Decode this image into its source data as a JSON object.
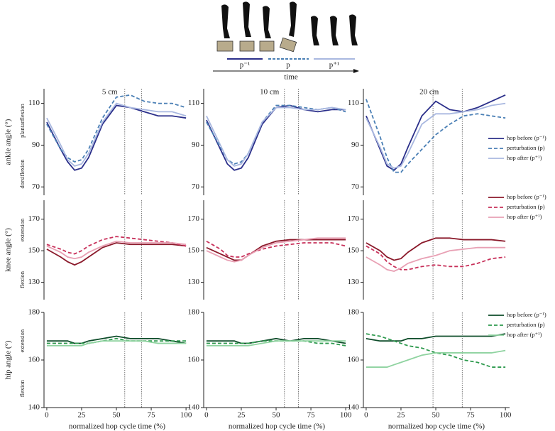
{
  "schematic": {
    "labels": [
      "p⁻¹",
      "p",
      "p⁺¹"
    ],
    "axis_label": "time"
  },
  "chart_data": [
    {
      "type": "line",
      "title": "5 cm",
      "ylabel": "ankle angle (°)",
      "ylabel_high": "plantarflexion",
      "ylabel_low": "dorsiflexion",
      "x": [
        0,
        10,
        15,
        20,
        25,
        30,
        40,
        50,
        60,
        70,
        80,
        90,
        100
      ],
      "xlim": [
        -2,
        103
      ],
      "ylim": [
        66,
        117
      ],
      "yticks": [
        70,
        90,
        110
      ],
      "vlines": [
        56,
        68
      ],
      "series": [
        {
          "color": "#2b2f8a",
          "style": "solid",
          "values": [
            101,
            88,
            82,
            78,
            79,
            84,
            100,
            109,
            108,
            106,
            104,
            104,
            103
          ]
        },
        {
          "color": "#4a7fb5",
          "style": "dashed",
          "values": [
            100,
            88,
            84,
            82,
            83,
            88,
            103,
            113,
            114,
            111,
            110,
            110,
            108
          ]
        },
        {
          "color": "#a9b8e0",
          "style": "solid",
          "values": [
            103,
            90,
            83,
            80,
            81,
            86,
            101,
            110,
            108,
            107,
            106,
            106,
            104
          ]
        }
      ]
    },
    {
      "type": "line",
      "title": "10 cm",
      "x": [
        0,
        10,
        15,
        20,
        25,
        30,
        40,
        50,
        60,
        70,
        80,
        90,
        100
      ],
      "xlim": [
        -2,
        103
      ],
      "ylim": [
        66,
        117
      ],
      "yticks": [
        70,
        90,
        110
      ],
      "vlines": [
        56,
        66
      ],
      "series": [
        {
          "color": "#2b2f8a",
          "style": "solid",
          "values": [
            102,
            88,
            81,
            78,
            79,
            84,
            100,
            108,
            109,
            107,
            106,
            107,
            107
          ]
        },
        {
          "color": "#4a7fb5",
          "style": "dashed",
          "values": [
            101,
            89,
            83,
            81,
            82,
            86,
            101,
            109,
            109,
            108,
            107,
            108,
            106
          ]
        },
        {
          "color": "#a9b8e0",
          "style": "solid",
          "values": [
            104,
            90,
            83,
            80,
            81,
            86,
            101,
            108,
            108,
            107,
            107,
            108,
            107
          ]
        }
      ]
    },
    {
      "type": "line",
      "title": "20 cm",
      "legend": "lower right",
      "x": [
        0,
        10,
        15,
        20,
        25,
        30,
        40,
        50,
        60,
        70,
        80,
        90,
        100
      ],
      "xlim": [
        -2,
        103
      ],
      "ylim": [
        66,
        117
      ],
      "yticks": [
        70,
        90,
        110
      ],
      "vlines": [
        48,
        69
      ],
      "series": [
        {
          "name": "hop before (p⁻¹)",
          "color": "#2b2f8a",
          "style": "solid",
          "values": [
            104,
            88,
            80,
            78,
            81,
            89,
            104,
            111,
            107,
            106,
            108,
            111,
            114
          ]
        },
        {
          "name": "perturbation (p)",
          "color": "#4a7fb5",
          "style": "dashed",
          "values": [
            112,
            94,
            84,
            77,
            77,
            81,
            88,
            95,
            100,
            104,
            105,
            104,
            103
          ]
        },
        {
          "name": "hop after (p⁺¹)",
          "color": "#a9b8e0",
          "style": "solid",
          "values": [
            103,
            89,
            81,
            79,
            80,
            86,
            100,
            105,
            105,
            106,
            107,
            109,
            110
          ]
        }
      ]
    },
    {
      "type": "line",
      "ylabel": "knee angle (°)",
      "ylabel_high": "extension",
      "ylabel_low": "flexion",
      "x": [
        0,
        10,
        15,
        20,
        25,
        30,
        40,
        50,
        60,
        70,
        80,
        90,
        100
      ],
      "xlim": [
        -2,
        103
      ],
      "ylim": [
        119,
        182
      ],
      "yticks": [
        130,
        150,
        170
      ],
      "vlines": [
        56,
        68
      ],
      "series": [
        {
          "color": "#8b1a2b",
          "style": "solid",
          "values": [
            151,
            146,
            143,
            141,
            143,
            146,
            152,
            155,
            154,
            154,
            154,
            154,
            153
          ]
        },
        {
          "color": "#c8305a",
          "style": "dashed",
          "values": [
            154,
            151,
            149,
            148,
            150,
            153,
            157,
            159,
            158,
            157,
            156,
            155,
            153
          ]
        },
        {
          "color": "#e8a0b4",
          "style": "solid",
          "values": [
            153,
            149,
            146,
            145,
            146,
            149,
            153,
            156,
            155,
            155,
            155,
            155,
            154
          ]
        }
      ]
    },
    {
      "type": "line",
      "x": [
        0,
        10,
        15,
        20,
        25,
        30,
        40,
        50,
        60,
        70,
        80,
        90,
        100
      ],
      "xlim": [
        -2,
        103
      ],
      "ylim": [
        119,
        182
      ],
      "yticks": [
        130,
        150,
        170
      ],
      "vlines": [
        56,
        66
      ],
      "series": [
        {
          "color": "#8b1a2b",
          "style": "solid",
          "values": [
            152,
            148,
            146,
            144,
            144,
            147,
            153,
            156,
            157,
            157,
            157,
            157,
            157
          ]
        },
        {
          "color": "#c8305a",
          "style": "dashed",
          "values": [
            156,
            151,
            147,
            146,
            146,
            148,
            151,
            153,
            154,
            155,
            155,
            155,
            153
          ]
        },
        {
          "color": "#e8a0b4",
          "style": "solid",
          "values": [
            150,
            146,
            144,
            143,
            144,
            147,
            152,
            155,
            156,
            157,
            158,
            158,
            158
          ]
        }
      ]
    },
    {
      "type": "line",
      "legend": "upper right",
      "x": [
        0,
        10,
        15,
        20,
        25,
        30,
        40,
        50,
        60,
        70,
        80,
        90,
        100
      ],
      "xlim": [
        -2,
        103
      ],
      "ylim": [
        119,
        182
      ],
      "yticks": [
        130,
        150,
        170
      ],
      "vlines": [
        48,
        69
      ],
      "series": [
        {
          "name": "hop before (p⁻¹)",
          "color": "#8b1a2b",
          "style": "solid",
          "values": [
            155,
            150,
            146,
            144,
            145,
            149,
            155,
            158,
            158,
            157,
            157,
            157,
            156
          ]
        },
        {
          "name": "perturbation (p)",
          "color": "#c8305a",
          "style": "dashed",
          "values": [
            153,
            148,
            143,
            140,
            138,
            138,
            140,
            141,
            140,
            140,
            142,
            145,
            146
          ]
        },
        {
          "name": "hop after (p⁺¹)",
          "color": "#e8a0b4",
          "style": "solid",
          "values": [
            146,
            141,
            138,
            137,
            139,
            142,
            145,
            147,
            150,
            151,
            152,
            152,
            152
          ]
        }
      ]
    },
    {
      "type": "line",
      "ylabel": "hip angle (°)",
      "ylabel_high": "extension",
      "ylabel_low": "flexion",
      "xlabel": "normalized hop cycle time (%)",
      "x": [
        0,
        10,
        15,
        20,
        25,
        30,
        40,
        50,
        60,
        70,
        80,
        90,
        100
      ],
      "xlim": [
        -2,
        103
      ],
      "xticks": [
        0,
        25,
        50,
        75,
        100
      ],
      "ylim": [
        140,
        180
      ],
      "yticks": [
        140,
        160,
        180
      ],
      "vlines": [
        56,
        68
      ],
      "series": [
        {
          "color": "#0e4d2a",
          "style": "solid",
          "values": [
            168,
            168,
            168,
            167,
            167,
            168,
            169,
            170,
            169,
            169,
            169,
            168,
            167
          ]
        },
        {
          "color": "#2e9a4e",
          "style": "dashed",
          "values": [
            167,
            167,
            167,
            167,
            167,
            167,
            168,
            169,
            168,
            168,
            168,
            168,
            168
          ]
        },
        {
          "color": "#8fd3a0",
          "style": "solid",
          "values": [
            166,
            166,
            166,
            166,
            166,
            167,
            168,
            168,
            168,
            168,
            167,
            167,
            167
          ]
        }
      ]
    },
    {
      "type": "line",
      "xlabel": "normalized hop cycle time (%)",
      "x": [
        0,
        10,
        15,
        20,
        25,
        30,
        40,
        50,
        60,
        70,
        80,
        90,
        100
      ],
      "xlim": [
        -2,
        103
      ],
      "xticks": [
        0,
        25,
        50,
        75,
        100
      ],
      "ylim": [
        140,
        180
      ],
      "yticks": [
        140,
        160,
        180
      ],
      "vlines": [
        56,
        66
      ],
      "series": [
        {
          "color": "#0e4d2a",
          "style": "solid",
          "values": [
            168,
            168,
            168,
            168,
            167,
            167,
            168,
            169,
            168,
            169,
            169,
            168,
            167
          ]
        },
        {
          "color": "#2e9a4e",
          "style": "dashed",
          "values": [
            167,
            167,
            167,
            167,
            167,
            167,
            168,
            168,
            168,
            168,
            167,
            167,
            166
          ]
        },
        {
          "color": "#8fd3a0",
          "style": "solid",
          "values": [
            166,
            166,
            166,
            166,
            166,
            166,
            167,
            168,
            168,
            168,
            168,
            168,
            168
          ]
        }
      ]
    },
    {
      "type": "line",
      "legend": "upper right",
      "xlabel": "normalized hop cycle time (%)",
      "x": [
        0,
        10,
        15,
        20,
        25,
        30,
        40,
        50,
        60,
        70,
        80,
        90,
        100
      ],
      "xlim": [
        -2,
        103
      ],
      "xticks": [
        0,
        25,
        50,
        75,
        100
      ],
      "ylim": [
        140,
        180
      ],
      "yticks": [
        140,
        160,
        180
      ],
      "vlines": [
        48,
        69
      ],
      "series": [
        {
          "name": "hop before (p⁻¹)",
          "color": "#0e4d2a",
          "style": "solid",
          "values": [
            169,
            168,
            168,
            168,
            168,
            169,
            169,
            170,
            170,
            170,
            170,
            170,
            171
          ]
        },
        {
          "name": "perturbation (p)",
          "color": "#2e9a4e",
          "style": "dashed",
          "values": [
            171,
            170,
            169,
            168,
            167,
            166,
            165,
            163,
            162,
            160,
            159,
            157,
            157
          ]
        },
        {
          "name": "hop after (p⁺¹)",
          "color": "#8fd3a0",
          "style": "solid",
          "values": [
            157,
            157,
            157,
            158,
            159,
            160,
            162,
            163,
            163,
            163,
            163,
            163,
            164
          ]
        }
      ]
    }
  ]
}
